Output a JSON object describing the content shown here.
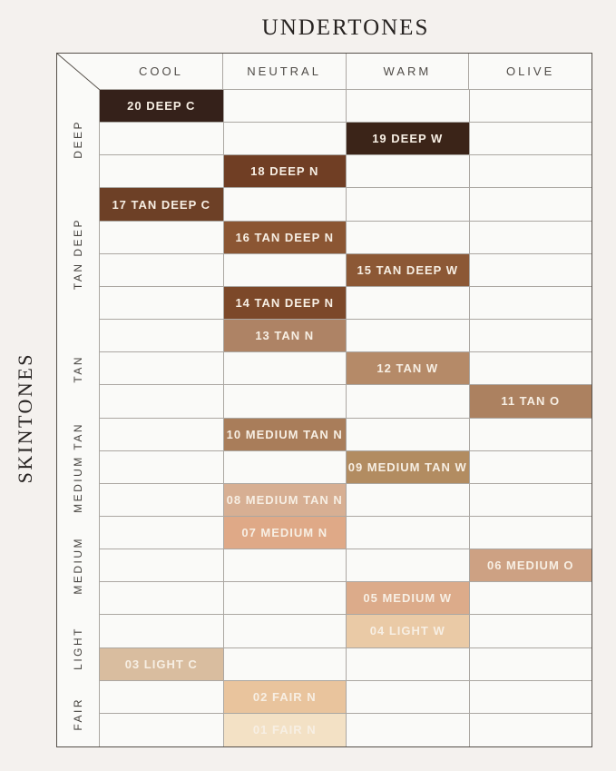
{
  "chart_data": {
    "type": "heatmap",
    "x_axis_label": "UNDERTONES",
    "y_axis_label": "SKINTONES",
    "x_categories": [
      "COOL",
      "NEUTRAL",
      "WARM",
      "OLIVE"
    ],
    "y_groups": [
      {
        "label": "DEEP",
        "rows": 3
      },
      {
        "label": "TAN DEEP",
        "rows": 4
      },
      {
        "label": "TAN",
        "rows": 3
      },
      {
        "label": "MEDIUM TAN",
        "rows": 3
      },
      {
        "label": "MEDIUM",
        "rows": 3
      },
      {
        "label": "LIGHT",
        "rows": 2
      },
      {
        "label": "FAIR",
        "rows": 2
      }
    ],
    "shades": [
      {
        "label": "20 DEEP C",
        "skintone": "DEEP",
        "undertone": "COOL",
        "color": "#35211a"
      },
      {
        "label": "19 DEEP W",
        "skintone": "DEEP",
        "undertone": "WARM",
        "color": "#3b2418"
      },
      {
        "label": "18 DEEP N",
        "skintone": "DEEP",
        "undertone": "NEUTRAL",
        "color": "#703e24"
      },
      {
        "label": "17 TAN DEEP C",
        "skintone": "TAN DEEP",
        "undertone": "COOL",
        "color": "#6d4026"
      },
      {
        "label": "16 TAN DEEP N",
        "skintone": "TAN DEEP",
        "undertone": "NEUTRAL",
        "color": "#8b5633"
      },
      {
        "label": "15 TAN DEEP W",
        "skintone": "TAN DEEP",
        "undertone": "WARM",
        "color": "#8c5835"
      },
      {
        "label": "14 TAN DEEP N",
        "skintone": "TAN DEEP",
        "undertone": "NEUTRAL",
        "color": "#7c4829"
      },
      {
        "label": "13 TAN N",
        "skintone": "TAN",
        "undertone": "NEUTRAL",
        "color": "#ae8365"
      },
      {
        "label": "12 TAN W",
        "skintone": "TAN",
        "undertone": "WARM",
        "color": "#b58a68"
      },
      {
        "label": "11 TAN O",
        "skintone": "TAN",
        "undertone": "OLIVE",
        "color": "#ac8160"
      },
      {
        "label": "10 MEDIUM TAN N",
        "skintone": "MEDIUM TAN",
        "undertone": "NEUTRAL",
        "color": "#a97d5a"
      },
      {
        "label": "09 MEDIUM TAN W",
        "skintone": "MEDIUM TAN",
        "undertone": "WARM",
        "color": "#b28c61"
      },
      {
        "label": "08 MEDIUM TAN N",
        "skintone": "MEDIUM TAN",
        "undertone": "NEUTRAL",
        "color": "#d7af93"
      },
      {
        "label": "07 MEDIUM N",
        "skintone": "MEDIUM",
        "undertone": "NEUTRAL",
        "color": "#dfa987"
      },
      {
        "label": "06 MEDIUM O",
        "skintone": "MEDIUM",
        "undertone": "OLIVE",
        "color": "#cda183"
      },
      {
        "label": "05 MEDIUM W",
        "skintone": "MEDIUM",
        "undertone": "WARM",
        "color": "#dcab8a"
      },
      {
        "label": "04 LIGHT W",
        "skintone": "LIGHT",
        "undertone": "WARM",
        "color": "#eacaa6"
      },
      {
        "label": "03 LIGHT C",
        "skintone": "LIGHT",
        "undertone": "COOL",
        "color": "#d9bd9f"
      },
      {
        "label": "02 FAIR N",
        "skintone": "FAIR",
        "undertone": "NEUTRAL",
        "color": "#e9c49d"
      },
      {
        "label": "01 FAIR N",
        "skintone": "FAIR",
        "undertone": "NEUTRAL",
        "color": "#f3e1c5"
      }
    ],
    "colors": {
      "page_background": "#f4f1ee",
      "cell_background": "#fafaf8",
      "grid_line": "#aba7a2",
      "outer_border": "#56504a",
      "shade_text": "#f7efe4",
      "heading_text": "#4f4b47",
      "title_text": "#262220"
    }
  }
}
